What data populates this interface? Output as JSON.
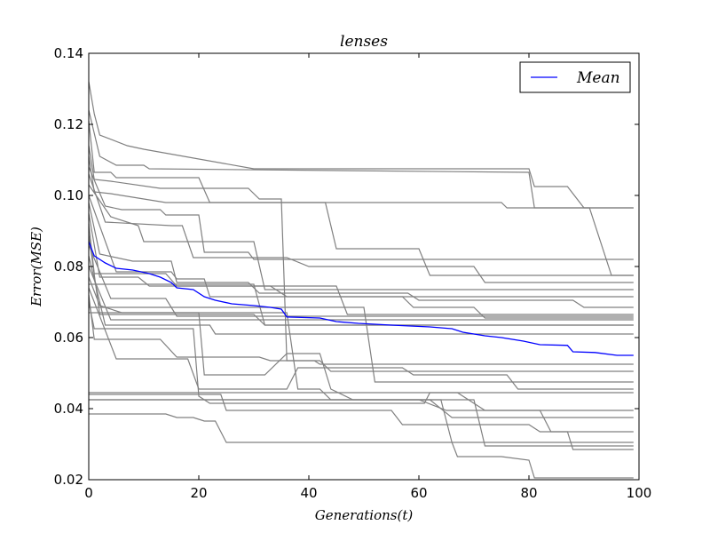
{
  "chart_data": {
    "type": "line",
    "title": "lenses",
    "xlabel": "Generations(t)",
    "ylabel": "Error(MSE)",
    "xlim": [
      0,
      100
    ],
    "ylim": [
      0.02,
      0.14
    ],
    "x_ticks": [
      "0",
      "20",
      "40",
      "60",
      "80",
      "100"
    ],
    "y_ticks": [
      "0.02",
      "0.04",
      "0.06",
      "0.08",
      "0.10",
      "0.12",
      "0.14"
    ],
    "grid": false,
    "legend": {
      "position": "top-right",
      "entries": [
        "Mean"
      ]
    },
    "colors": {
      "runs": "#808080",
      "mean": "#0000ff"
    },
    "mean_series": {
      "name": "Mean",
      "points": [
        [
          0,
          0.087
        ],
        [
          1,
          0.083
        ],
        [
          3,
          0.081
        ],
        [
          5,
          0.0795
        ],
        [
          8,
          0.079
        ],
        [
          11,
          0.078
        ],
        [
          13,
          0.077
        ],
        [
          15,
          0.0755
        ],
        [
          16,
          0.074
        ],
        [
          19,
          0.0735
        ],
        [
          21,
          0.0715
        ],
        [
          23,
          0.0705
        ],
        [
          26,
          0.0695
        ],
        [
          30,
          0.069
        ],
        [
          33,
          0.0685
        ],
        [
          35,
          0.068
        ],
        [
          36,
          0.0658
        ],
        [
          42,
          0.0655
        ],
        [
          45,
          0.0645
        ],
        [
          49,
          0.064
        ],
        [
          55,
          0.0635
        ],
        [
          62,
          0.063
        ],
        [
          66,
          0.0625
        ],
        [
          68,
          0.0615
        ],
        [
          72,
          0.0605
        ],
        [
          75,
          0.06
        ],
        [
          79,
          0.059
        ],
        [
          82,
          0.058
        ],
        [
          87,
          0.0578
        ],
        [
          88,
          0.056
        ],
        [
          92,
          0.0558
        ],
        [
          96,
          0.055
        ],
        [
          99,
          0.055
        ]
      ]
    },
    "run_series": [
      [
        [
          0,
          0.132
        ],
        [
          1,
          0.123
        ],
        [
          2,
          0.117
        ],
        [
          7,
          0.114
        ],
        [
          10,
          0.113
        ],
        [
          30,
          0.1075
        ],
        [
          80,
          0.1075
        ],
        [
          81,
          0.1025
        ],
        [
          87,
          0.1025
        ],
        [
          90,
          0.0965
        ],
        [
          99,
          0.0965
        ]
      ],
      [
        [
          0,
          0.124
        ],
        [
          2,
          0.111
        ],
        [
          5,
          0.1085
        ],
        [
          10,
          0.1085
        ],
        [
          11,
          0.1075
        ],
        [
          80,
          0.1065
        ],
        [
          81,
          0.0965
        ],
        [
          91,
          0.0965
        ],
        [
          95,
          0.0775
        ],
        [
          99,
          0.0775
        ]
      ],
      [
        [
          0,
          0.121
        ],
        [
          1,
          0.1065
        ],
        [
          4,
          0.1065
        ],
        [
          5,
          0.105
        ],
        [
          20,
          0.105
        ],
        [
          22,
          0.098
        ],
        [
          75,
          0.098
        ],
        [
          76,
          0.0965
        ],
        [
          99,
          0.0965
        ]
      ],
      [
        [
          0,
          0.114
        ],
        [
          1,
          0.1045
        ],
        [
          4,
          0.104
        ],
        [
          13,
          0.102
        ],
        [
          29,
          0.102
        ],
        [
          31,
          0.099
        ],
        [
          35,
          0.099
        ],
        [
          36,
          0.0535
        ],
        [
          41,
          0.0535
        ],
        [
          42,
          0.0525
        ],
        [
          99,
          0.0525
        ]
      ],
      [
        [
          0,
          0.111
        ],
        [
          1,
          0.101
        ],
        [
          4,
          0.1005
        ],
        [
          8,
          0.0995
        ],
        [
          14,
          0.098
        ],
        [
          43,
          0.098
        ],
        [
          45,
          0.085
        ],
        [
          60,
          0.085
        ],
        [
          62,
          0.0775
        ],
        [
          99,
          0.0775
        ]
      ],
      [
        [
          0,
          0.108
        ],
        [
          3,
          0.097
        ],
        [
          6,
          0.096
        ],
        [
          13,
          0.096
        ],
        [
          14,
          0.0945
        ],
        [
          20,
          0.0945
        ],
        [
          21,
          0.084
        ],
        [
          29,
          0.084
        ],
        [
          30,
          0.082
        ],
        [
          99,
          0.082
        ]
      ],
      [
        [
          0,
          0.106
        ],
        [
          3,
          0.0925
        ],
        [
          15,
          0.0915
        ],
        [
          17,
          0.0915
        ],
        [
          19,
          0.0825
        ],
        [
          36,
          0.0825
        ],
        [
          40,
          0.08
        ],
        [
          70,
          0.08
        ],
        [
          72,
          0.0755
        ],
        [
          99,
          0.0755
        ]
      ],
      [
        [
          0,
          0.103
        ],
        [
          4,
          0.094
        ],
        [
          9,
          0.0915
        ],
        [
          10,
          0.087
        ],
        [
          30,
          0.087
        ],
        [
          32,
          0.0735
        ],
        [
          99,
          0.0735
        ]
      ],
      [
        [
          0,
          0.1
        ],
        [
          5,
          0.0785
        ],
        [
          15,
          0.0785
        ],
        [
          16,
          0.0765
        ],
        [
          21,
          0.0765
        ],
        [
          22,
          0.0715
        ],
        [
          99,
          0.0715
        ]
      ],
      [
        [
          0,
          0.098
        ],
        [
          2,
          0.0835
        ],
        [
          8,
          0.0815
        ],
        [
          15,
          0.0815
        ],
        [
          16,
          0.0755
        ],
        [
          29,
          0.0755
        ],
        [
          31,
          0.0725
        ],
        [
          58,
          0.0725
        ],
        [
          60,
          0.0705
        ],
        [
          88,
          0.0705
        ],
        [
          90,
          0.0685
        ],
        [
          99,
          0.0685
        ]
      ],
      [
        [
          0,
          0.095
        ],
        [
          2,
          0.077
        ],
        [
          9,
          0.077
        ],
        [
          11,
          0.0745
        ],
        [
          45,
          0.0745
        ],
        [
          47,
          0.0665
        ],
        [
          99,
          0.0665
        ]
      ],
      [
        [
          0,
          0.092
        ],
        [
          1,
          0.078
        ],
        [
          14,
          0.078
        ],
        [
          16,
          0.0745
        ],
        [
          33,
          0.0745
        ],
        [
          36,
          0.0715
        ],
        [
          57,
          0.0715
        ],
        [
          59,
          0.0685
        ],
        [
          70,
          0.0685
        ],
        [
          72,
          0.0655
        ],
        [
          99,
          0.0655
        ]
      ],
      [
        [
          0,
          0.089
        ],
        [
          2,
          0.0665
        ],
        [
          30,
          0.0665
        ],
        [
          32,
          0.0635
        ],
        [
          99,
          0.0635
        ]
      ],
      [
        [
          0,
          0.086
        ],
        [
          4,
          0.071
        ],
        [
          14,
          0.071
        ],
        [
          16,
          0.066
        ],
        [
          99,
          0.066
        ]
      ],
      [
        [
          0,
          0.083
        ],
        [
          3,
          0.0635
        ],
        [
          22,
          0.0635
        ],
        [
          23,
          0.061
        ],
        [
          99,
          0.061
        ]
      ],
      [
        [
          0,
          0.08
        ],
        [
          4,
          0.065
        ],
        [
          99,
          0.065
        ]
      ],
      [
        [
          0,
          0.077
        ],
        [
          2,
          0.069
        ],
        [
          6,
          0.067
        ],
        [
          20,
          0.067
        ],
        [
          21,
          0.0495
        ],
        [
          32,
          0.0495
        ],
        [
          36,
          0.0555
        ],
        [
          42,
          0.0555
        ],
        [
          44,
          0.0455
        ],
        [
          48,
          0.0425
        ],
        [
          60,
          0.0425
        ],
        [
          65,
          0.0395
        ],
        [
          99,
          0.0395
        ]
      ],
      [
        [
          0,
          0.074
        ],
        [
          5,
          0.054
        ],
        [
          18,
          0.054
        ],
        [
          20,
          0.0455
        ],
        [
          36,
          0.0455
        ],
        [
          38,
          0.0515
        ],
        [
          57,
          0.0515
        ],
        [
          59,
          0.0495
        ],
        [
          76,
          0.0495
        ],
        [
          78,
          0.0455
        ],
        [
          99,
          0.0455
        ]
      ],
      [
        [
          0,
          0.072
        ],
        [
          1,
          0.0595
        ],
        [
          13,
          0.0595
        ],
        [
          16,
          0.0545
        ],
        [
          31,
          0.0545
        ],
        [
          33,
          0.0535
        ],
        [
          42,
          0.0535
        ],
        [
          44,
          0.0505
        ],
        [
          99,
          0.0505
        ]
      ],
      [
        [
          0,
          0.07
        ],
        [
          1,
          0.0625
        ],
        [
          19,
          0.0625
        ],
        [
          20,
          0.0435
        ],
        [
          22,
          0.0415
        ],
        [
          61,
          0.0415
        ],
        [
          62,
          0.0445
        ],
        [
          67,
          0.0445
        ],
        [
          72,
          0.0395
        ],
        [
          82,
          0.0395
        ],
        [
          84,
          0.0335
        ],
        [
          87,
          0.0335
        ],
        [
          88,
          0.0285
        ],
        [
          99,
          0.0285
        ]
      ],
      [
        [
          0,
          0.0445
        ],
        [
          60,
          0.0445
        ],
        [
          99,
          0.0445
        ]
      ],
      [
        [
          0,
          0.044
        ],
        [
          24,
          0.044
        ],
        [
          25,
          0.0395
        ],
        [
          55,
          0.0395
        ],
        [
          57,
          0.0355
        ],
        [
          80,
          0.0355
        ],
        [
          82,
          0.0335
        ],
        [
          99,
          0.0335
        ]
      ],
      [
        [
          0,
          0.0425
        ],
        [
          60,
          0.0425
        ],
        [
          62,
          0.0425
        ],
        [
          66,
          0.0375
        ],
        [
          99,
          0.0375
        ]
      ],
      [
        [
          0,
          0.0385
        ],
        [
          14,
          0.0385
        ],
        [
          16,
          0.0375
        ],
        [
          19,
          0.0375
        ],
        [
          21,
          0.0365
        ],
        [
          23,
          0.0365
        ],
        [
          25,
          0.0305
        ],
        [
          99,
          0.0305
        ]
      ],
      [
        [
          0,
          0.0425
        ],
        [
          64,
          0.0425
        ],
        [
          66,
          0.0305
        ],
        [
          67,
          0.0265
        ],
        [
          75,
          0.0265
        ],
        [
          80,
          0.0255
        ],
        [
          81,
          0.0205
        ],
        [
          99,
          0.0205
        ]
      ],
      [
        [
          0,
          0.067
        ],
        [
          36,
          0.067
        ],
        [
          38,
          0.0455
        ],
        [
          42,
          0.0455
        ],
        [
          44,
          0.0425
        ],
        [
          70,
          0.0425
        ],
        [
          72,
          0.0295
        ],
        [
          99,
          0.0295
        ]
      ],
      [
        [
          0,
          0.075
        ],
        [
          30,
          0.075
        ],
        [
          32,
          0.0635
        ],
        [
          99,
          0.0635
        ]
      ],
      [
        [
          0,
          0.0685
        ],
        [
          50,
          0.0685
        ],
        [
          52,
          0.0475
        ],
        [
          99,
          0.0475
        ]
      ]
    ]
  }
}
